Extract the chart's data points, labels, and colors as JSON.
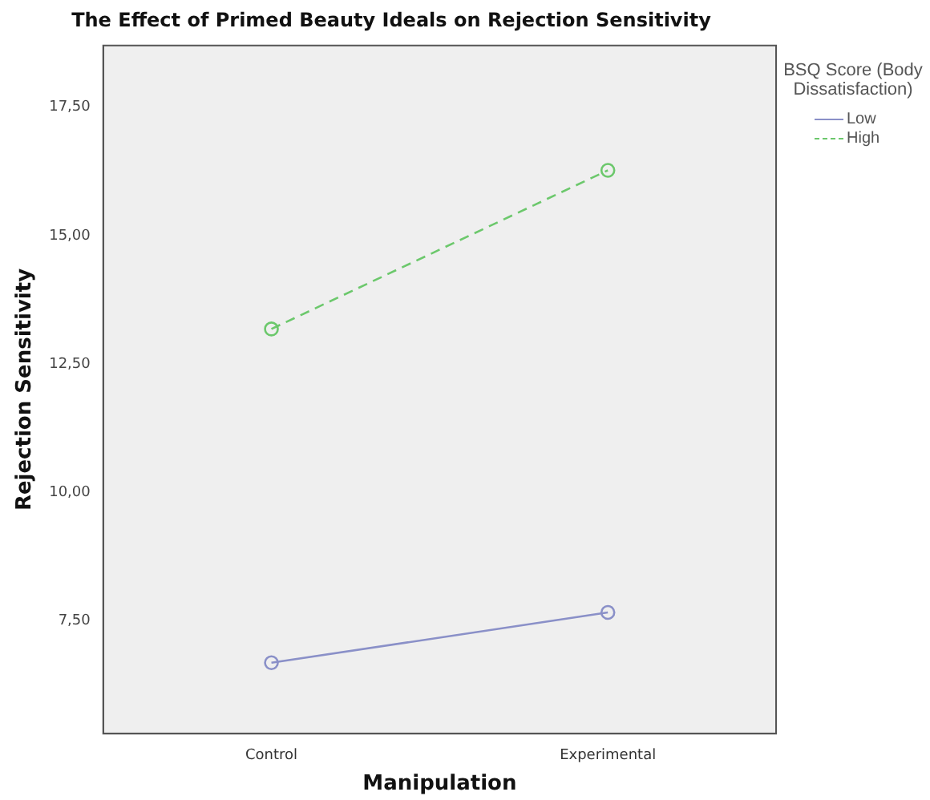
{
  "chart_data": {
    "type": "line",
    "title": "The Effect of Primed Beauty Ideals on Rejection Sensitivity",
    "xlabel": "Manipulation",
    "ylabel": "Rejection Sensitivity",
    "legend_title": "BSQ Score (Body Dissatisfaction)",
    "categories": [
      "Control",
      "Experimental"
    ],
    "series": [
      {
        "name": "Low",
        "color": "#8a90c8",
        "values": [
          6.68,
          7.66
        ],
        "line_style": "solid"
      },
      {
        "name": "High",
        "color": "#6cc86c",
        "values": [
          13.18,
          16.27
        ],
        "line_style": "dashed"
      }
    ],
    "ylim": [
      5.3,
      18.7
    ],
    "yticks": [
      {
        "value": 7.5,
        "label": "7,50"
      },
      {
        "value": 10,
        "label": "10,00"
      },
      {
        "value": 12.5,
        "label": "12,50"
      },
      {
        "value": 15,
        "label": "15,00"
      },
      {
        "value": 17.5,
        "label": "17,50"
      }
    ],
    "grid": false,
    "legend": "top right",
    "marker": "circle"
  }
}
